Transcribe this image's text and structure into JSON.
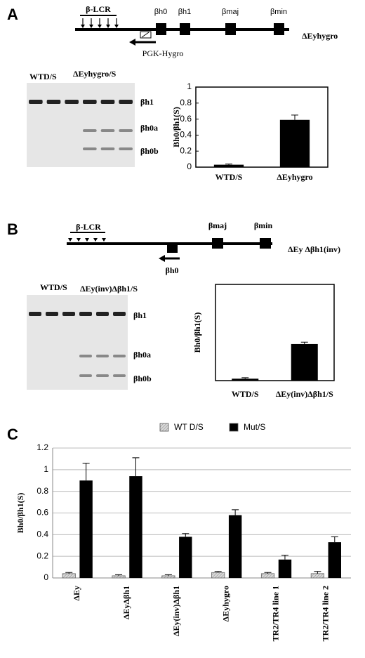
{
  "panels": {
    "A": {
      "letter": "A",
      "diagram": {
        "region": "β-LCR",
        "genes": [
          "βh0",
          "βh1",
          "βmaj",
          "βmin"
        ],
        "cassette": "PGK-Hygro",
        "allele": "ΔEyhygro"
      },
      "gel": {
        "lanes": [
          "WTD/S",
          "ΔEyhygro/S"
        ],
        "bands": [
          "βh1",
          "βh0a",
          "βh0b"
        ]
      }
    },
    "B": {
      "letter": "B",
      "diagram": {
        "region": "β-LCR",
        "genes": [
          "βmaj",
          "βmin"
        ],
        "inverted_gene": "βh0",
        "allele": "ΔEy Δβh1(inv)"
      },
      "gel": {
        "lanes": [
          "WTD/S",
          "ΔEy(inv)Δβh1/S"
        ],
        "bands": [
          "βh1",
          "βh0a",
          "βh0b"
        ]
      }
    },
    "C": {
      "letter": "C"
    }
  },
  "chart_data": [
    {
      "type": "bar",
      "y_label": "Bh0/βh1(S)",
      "categories": [
        "WTD/S",
        "ΔEyhygro"
      ],
      "values": [
        0.03,
        0.59
      ],
      "errors": [
        0.01,
        0.06
      ],
      "color": "#000000",
      "ylim": [
        0,
        1
      ],
      "yticks": [
        0,
        0.2,
        0.4,
        0.6,
        0.8,
        1
      ],
      "frame": true
    },
    {
      "type": "bar",
      "y_label": "Bh0/βh1(S)",
      "categories": [
        "WTD/S",
        "ΔEy(inv)Δβh1/S"
      ],
      "values": [
        0.02,
        0.38
      ],
      "errors": [
        0.01,
        0.02
      ],
      "color": "#000000",
      "ylim": [
        0,
        1
      ],
      "frame": true
    },
    {
      "type": "bar",
      "y_label": "Bh0/βh1(S)",
      "categories": [
        "ΔEy",
        "ΔEyΔβh1",
        "ΔEy(inv)Δβh1",
        "ΔEyhygro",
        "TR2/TR4 line 1",
        "TR2/TR4 line 2"
      ],
      "series": [
        {
          "name": "WT D/S",
          "color": "#d0d0d0",
          "values": [
            0.04,
            0.02,
            0.02,
            0.05,
            0.04,
            0.04
          ],
          "errors": [
            0.01,
            0.01,
            0.01,
            0.01,
            0.01,
            0.02
          ]
        },
        {
          "name": "Mut/S",
          "color": "#000000",
          "values": [
            0.9,
            0.94,
            0.38,
            0.58,
            0.17,
            0.33
          ],
          "errors": [
            0.16,
            0.17,
            0.03,
            0.05,
            0.04,
            0.05
          ]
        }
      ],
      "ylim": [
        0,
        1.2
      ],
      "yticks": [
        0,
        0.2,
        0.4,
        0.6,
        0.8,
        1,
        1.2
      ],
      "grid": true,
      "legend": "top"
    }
  ]
}
